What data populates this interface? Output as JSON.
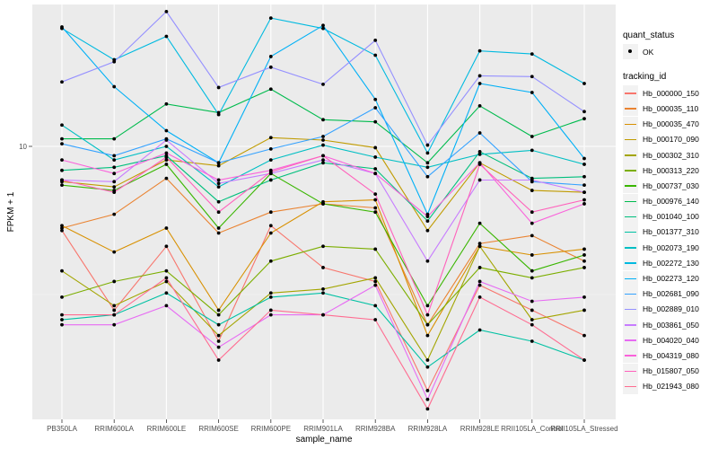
{
  "chart_data": {
    "type": "line",
    "title": "",
    "xlabel": "sample_name",
    "ylabel": "FPKM + 1",
    "y_scale": "log10",
    "ylim": [
      1.2,
      30
    ],
    "y_ticks": [
      {
        "value": 10,
        "label": "10"
      }
    ],
    "grid": true,
    "legend_placement": "right",
    "categories": [
      "PB350LA",
      "RRIM600LA",
      "RRIM600LE",
      "RRIM600SE",
      "RRIM600PE",
      "RRIM901LA",
      "RRIM928BA",
      "RRIM928LA",
      "RRIM928LE",
      "RRII105LA_Control",
      "RRII105LA_Stressed"
    ],
    "shape_legend": {
      "title": "quant_status",
      "entries": [
        "OK"
      ]
    },
    "color_legend_title": "tracking_id",
    "series": [
      {
        "name": "Hb_000000_150",
        "color": "#F8766D",
        "values": [
          5.2,
          2.8,
          4.6,
          2.2,
          5.4,
          3.9,
          3.5,
          1.5,
          3.4,
          2.8,
          2.3
        ]
      },
      {
        "name": "Hb_000035_110",
        "color": "#EA8331",
        "values": [
          5.3,
          5.9,
          7.8,
          5.1,
          6.0,
          6.4,
          6.2,
          2.5,
          4.7,
          5.0,
          4.1
        ]
      },
      {
        "name": "Hb_000035_470",
        "color": "#D89000",
        "values": [
          5.4,
          4.4,
          5.3,
          2.8,
          5.1,
          6.5,
          6.6,
          2.3,
          4.6,
          4.3,
          4.5
        ]
      },
      {
        "name": "Hb_000170_090",
        "color": "#C09B00",
        "values": [
          7.6,
          7.3,
          9.0,
          8.6,
          10.7,
          10.5,
          9.9,
          5.2,
          8.8,
          7.1,
          7.0
        ]
      },
      {
        "name": "Hb_000302_310",
        "color": "#A3A500",
        "values": [
          3.8,
          2.9,
          3.5,
          2.3,
          3.2,
          3.3,
          3.6,
          1.9,
          4.6,
          2.6,
          2.8
        ]
      },
      {
        "name": "Hb_000313_220",
        "color": "#7CAE00",
        "values": [
          3.1,
          3.5,
          3.8,
          2.7,
          4.1,
          4.6,
          4.5,
          2.5,
          3.9,
          3.6,
          3.9
        ]
      },
      {
        "name": "Hb_000737_030",
        "color": "#39B600",
        "values": [
          7.4,
          7.1,
          8.7,
          5.3,
          8.1,
          6.4,
          6.0,
          2.9,
          5.5,
          3.8,
          4.3
        ]
      },
      {
        "name": "Hb_000976_140",
        "color": "#00BB4E",
        "values": [
          10.6,
          10.6,
          13.9,
          13.0,
          15.6,
          12.3,
          12.1,
          8.8,
          13.7,
          10.8,
          12.4
        ]
      },
      {
        "name": "Hb_001040_100",
        "color": "#00BF7D",
        "values": [
          8.3,
          8.5,
          9.3,
          6.5,
          7.7,
          8.8,
          8.4,
          5.6,
          9.6,
          7.8,
          7.9
        ]
      },
      {
        "name": "Hb_001377_310",
        "color": "#00C1A3",
        "values": [
          2.6,
          2.7,
          3.2,
          2.5,
          3.1,
          3.2,
          2.9,
          1.8,
          2.4,
          2.2,
          1.9
        ]
      },
      {
        "name": "Hb_002073_190",
        "color": "#00BFC4",
        "values": [
          11.8,
          9.0,
          10.0,
          7.3,
          9.0,
          10.1,
          9.2,
          8.5,
          9.4,
          9.7,
          8.7
        ]
      },
      {
        "name": "Hb_002272_130",
        "color": "#00BAE0",
        "values": [
          25.0,
          19.6,
          23.5,
          12.8,
          27.1,
          25.0,
          20.3,
          9.5,
          21.0,
          20.5,
          16.3
        ]
      },
      {
        "name": "Hb_002273_120",
        "color": "#00B0F6",
        "values": [
          25.3,
          15.9,
          11.3,
          8.8,
          20.1,
          25.6,
          14.4,
          5.9,
          16.3,
          15.2,
          9.1
        ]
      },
      {
        "name": "Hb_002681_090",
        "color": "#35A2FF",
        "values": [
          10.2,
          9.3,
          10.6,
          8.8,
          9.8,
          10.8,
          13.5,
          7.9,
          11.1,
          7.6,
          7.4
        ]
      },
      {
        "name": "Hb_002889_010",
        "color": "#9590FF",
        "values": [
          16.5,
          19.3,
          28.5,
          15.8,
          18.5,
          16.2,
          22.8,
          10.1,
          17.3,
          17.2,
          13.1
        ]
      },
      {
        "name": "Hb_003861_050",
        "color": "#C77CFF",
        "values": [
          7.7,
          7.6,
          10.5,
          7.5,
          8.1,
          9.0,
          8.1,
          4.1,
          7.7,
          7.7,
          7.0
        ]
      },
      {
        "name": "Hb_004020_040",
        "color": "#E76BF3",
        "values": [
          2.5,
          2.5,
          2.9,
          2.1,
          2.7,
          2.7,
          3.4,
          1.4,
          3.5,
          3.0,
          3.1
        ]
      },
      {
        "name": "Hb_004319_080",
        "color": "#FA62DB",
        "values": [
          9.0,
          8.1,
          9.5,
          7.7,
          8.3,
          9.3,
          8.1,
          5.8,
          8.8,
          5.5,
          6.4
        ]
      },
      {
        "name": "Hb_015807_050",
        "color": "#FF62BC",
        "values": [
          7.7,
          7.0,
          9.2,
          6.0,
          8.2,
          9.3,
          6.9,
          2.7,
          8.7,
          6.0,
          6.6
        ]
      },
      {
        "name": "Hb_021943_080",
        "color": "#FF6C91",
        "values": [
          2.7,
          2.7,
          3.6,
          1.9,
          2.8,
          2.7,
          2.6,
          1.3,
          3.1,
          2.5,
          1.9
        ]
      }
    ]
  }
}
